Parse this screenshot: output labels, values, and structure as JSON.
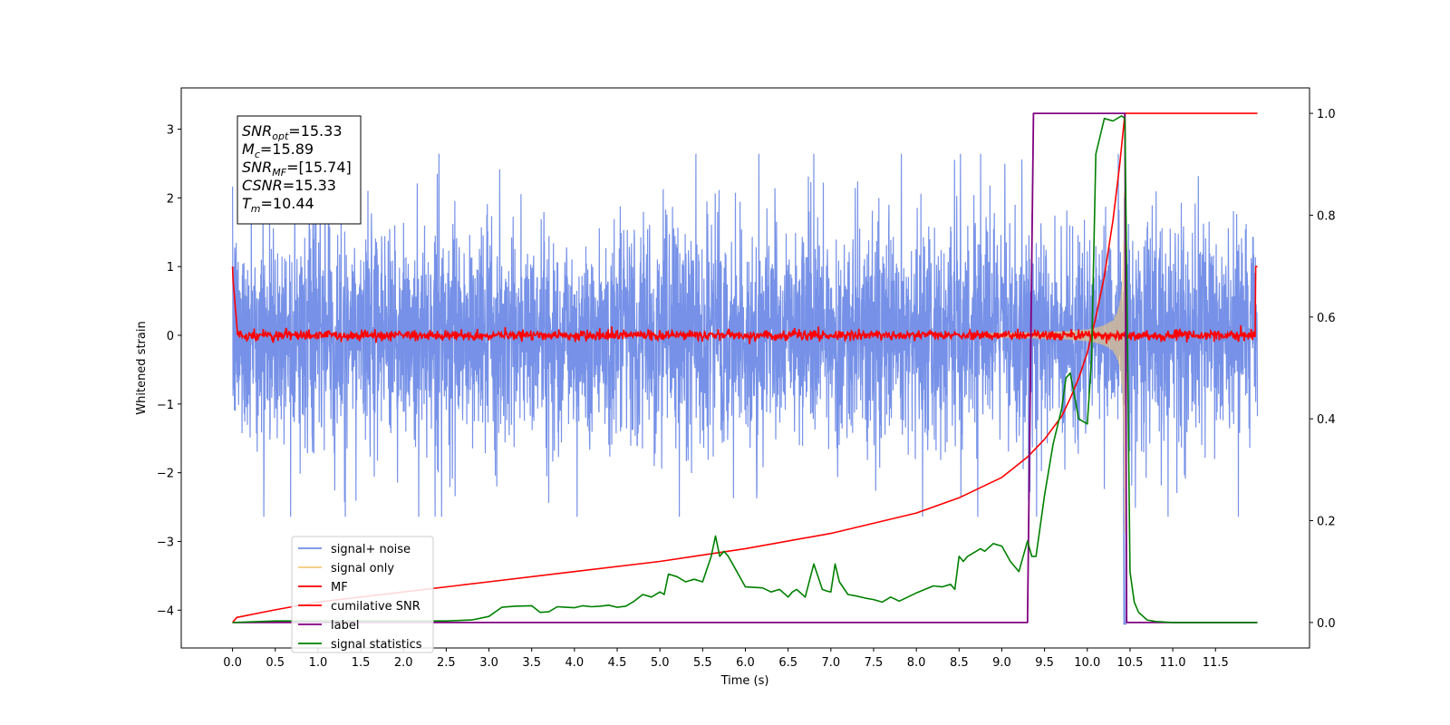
{
  "chart_data": {
    "type": "line",
    "xlabel": "Time (s)",
    "ylabel": "Whitened strain",
    "xlim": [
      -0.6,
      12.6
    ],
    "ylim": [
      -4.55,
      3.6
    ],
    "y2lim": [
      -0.05,
      1.05
    ],
    "x_ticks": [
      0.0,
      0.5,
      1.0,
      1.5,
      2.0,
      2.5,
      3.0,
      3.5,
      4.0,
      4.5,
      5.0,
      5.5,
      6.0,
      6.5,
      7.0,
      7.5,
      8.0,
      8.5,
      9.0,
      9.5,
      10.0,
      10.5,
      11.0,
      11.5
    ],
    "x_tick_labels": [
      "0.0",
      "0.5",
      "1.0",
      "1.5",
      "2.0",
      "2.5",
      "3.0",
      "3.5",
      "4.0",
      "4.5",
      "5.0",
      "5.5",
      "6.0",
      "6.5",
      "7.0",
      "7.5",
      "8.0",
      "8.5",
      "9.0",
      "9.5",
      "10.0",
      "10.5",
      "11.0",
      "11.5"
    ],
    "y_ticks": [
      3,
      2,
      1,
      0,
      -1,
      -2,
      -3,
      -4
    ],
    "y_tick_labels": [
      "3",
      "2",
      "1",
      "0",
      "−1",
      "−2",
      "−3",
      "−4"
    ],
    "y2_ticks": [
      1.0,
      0.8,
      0.6,
      0.4,
      0.2,
      0.0
    ],
    "y2_tick_labels": [
      "1.0",
      "0.8",
      "0.6",
      "0.4",
      "0.2",
      "0.0"
    ],
    "legend_position": "lower-left",
    "legend": [
      {
        "name": "signal+ noise",
        "color": "#6f8be6"
      },
      {
        "name": "signal only",
        "color": "#f5c97a"
      },
      {
        "name": "MF",
        "color": "#ff0000"
      },
      {
        "name": "cumilative SNR",
        "color": "#ff0000"
      },
      {
        "name": "label",
        "color": "#800080"
      },
      {
        "name": "signal statistics",
        "color": "#008000"
      }
    ],
    "annotation": [
      {
        "sym": "SNR",
        "sub": "opt",
        "val": "=15.33"
      },
      {
        "sym": "M",
        "sub": "c",
        "val": "=15.89"
      },
      {
        "sym": "SNR",
        "sub": "MF",
        "val": "=[15.74]"
      },
      {
        "sym": "CSNR",
        "sub": "",
        "val": "=15.33"
      },
      {
        "sym": "T",
        "sub": "m",
        "val": "=10.44"
      }
    ],
    "noise": {
      "t_start": 0.0,
      "t_end": 11.99,
      "envelope": 2.2
    },
    "signal_only": {
      "t_start": 8.8,
      "t_merge": 10.44,
      "peak_amp": 2.9
    },
    "mf": {
      "t_start": 0.0,
      "t_end": 11.99,
      "level": 0.0,
      "edge_value": 1.0
    },
    "cumulative_snr": {
      "x": [
        0.0,
        0.05,
        0.5,
        1.0,
        2.0,
        3.0,
        4.0,
        5.0,
        6.0,
        7.0,
        8.0,
        8.5,
        9.0,
        9.3,
        9.5,
        9.7,
        9.8,
        9.9,
        10.0,
        10.1,
        10.2,
        10.3,
        10.38,
        10.44,
        11.99
      ],
      "y": [
        0.0,
        0.01,
        0.025,
        0.04,
        0.06,
        0.08,
        0.1,
        0.12,
        0.145,
        0.175,
        0.215,
        0.245,
        0.285,
        0.325,
        0.36,
        0.405,
        0.44,
        0.48,
        0.53,
        0.6,
        0.68,
        0.79,
        0.9,
        1.0,
        1.0
      ]
    },
    "label": {
      "x": [
        0.0,
        9.3,
        9.37,
        10.44,
        10.46,
        11.99
      ],
      "y": [
        0.0,
        0.0,
        1.0,
        1.0,
        0.0,
        0.0
      ]
    },
    "signal_statistics": {
      "x": [
        0.0,
        0.5,
        1.0,
        1.5,
        2.0,
        2.5,
        2.8,
        3.0,
        3.15,
        3.3,
        3.5,
        3.6,
        3.7,
        3.8,
        3.9,
        4.0,
        4.1,
        4.2,
        4.3,
        4.4,
        4.5,
        4.6,
        4.7,
        4.8,
        4.9,
        5.0,
        5.05,
        5.1,
        5.2,
        5.3,
        5.4,
        5.5,
        5.6,
        5.65,
        5.7,
        5.75,
        5.8,
        5.85,
        6.0,
        6.2,
        6.3,
        6.4,
        6.5,
        6.55,
        6.6,
        6.7,
        6.8,
        6.9,
        6.95,
        7.0,
        7.05,
        7.1,
        7.2,
        7.3,
        7.4,
        7.5,
        7.6,
        7.7,
        7.8,
        7.9,
        8.0,
        8.1,
        8.2,
        8.3,
        8.4,
        8.45,
        8.5,
        8.55,
        8.6,
        8.7,
        8.75,
        8.8,
        8.9,
        9.0,
        9.1,
        9.2,
        9.3,
        9.35,
        9.4,
        9.5,
        9.6,
        9.7,
        9.75,
        9.8,
        9.9,
        10.0,
        10.05,
        10.1,
        10.2,
        10.3,
        10.4,
        10.44,
        10.5,
        10.55,
        10.6,
        10.7,
        10.8,
        11.0,
        11.5,
        11.99
      ],
      "y": [
        0.0,
        0.003,
        0.003,
        0.003,
        0.003,
        0.003,
        0.005,
        0.012,
        0.03,
        0.032,
        0.033,
        0.02,
        0.021,
        0.031,
        0.03,
        0.029,
        0.033,
        0.031,
        0.032,
        0.034,
        0.03,
        0.032,
        0.042,
        0.055,
        0.05,
        0.06,
        0.055,
        0.095,
        0.09,
        0.08,
        0.085,
        0.08,
        0.13,
        0.17,
        0.13,
        0.14,
        0.13,
        0.115,
        0.07,
        0.068,
        0.06,
        0.065,
        0.05,
        0.06,
        0.065,
        0.05,
        0.115,
        0.065,
        0.062,
        0.06,
        0.115,
        0.08,
        0.055,
        0.052,
        0.048,
        0.045,
        0.04,
        0.05,
        0.042,
        0.05,
        0.058,
        0.065,
        0.072,
        0.07,
        0.075,
        0.065,
        0.13,
        0.12,
        0.13,
        0.14,
        0.145,
        0.14,
        0.155,
        0.15,
        0.12,
        0.1,
        0.16,
        0.13,
        0.13,
        0.25,
        0.35,
        0.42,
        0.48,
        0.49,
        0.4,
        0.39,
        0.52,
        0.92,
        0.99,
        0.985,
        0.995,
        0.99,
        0.1,
        0.04,
        0.02,
        0.005,
        0.002,
        0.0,
        0.0,
        0.0
      ]
    }
  }
}
